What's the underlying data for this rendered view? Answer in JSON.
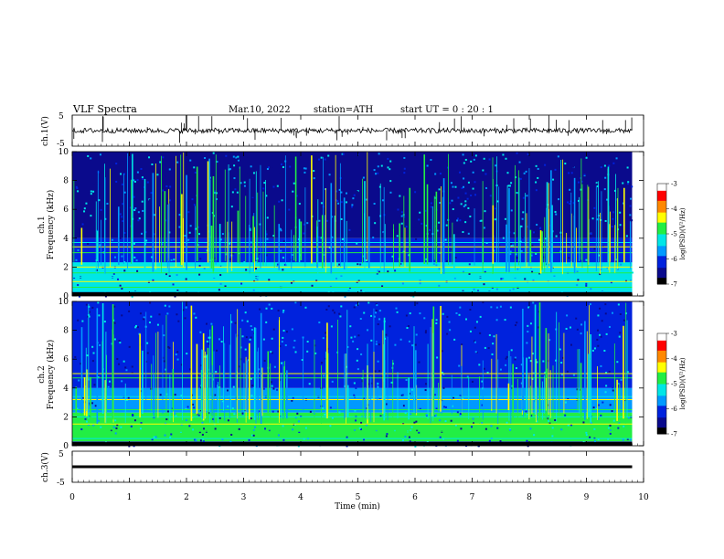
{
  "header": {
    "title": "VLF  Spectra",
    "date": "Mar.10, 2022",
    "station": "station=ATH",
    "start": "start  UT  =    0  : 20 : 1"
  },
  "colors": {
    "colormap": [
      "#000000",
      "#0a0a8c",
      "#0022dd",
      "#0099ff",
      "#00e6e6",
      "#22ee44",
      "#ffff00",
      "#ff8800",
      "#ff0000",
      "#ffffff"
    ],
    "trace": "#000000"
  },
  "chart_data": [
    {
      "type": "line",
      "name": "ch1-waveform",
      "ylabel": "ch.1(V)",
      "ylim": [
        -5,
        5
      ],
      "yticks": [
        "5",
        "-5"
      ],
      "baseline": 0,
      "amplitude": 0.8,
      "spikes_up_to": 5
    },
    {
      "type": "heatmap",
      "name": "ch1-spectrogram",
      "ylabel": "ch.1\nFrequency  (kHz)",
      "ylim": [
        0,
        10
      ],
      "yticks": [
        "0",
        "2",
        "4",
        "6",
        "8",
        "10"
      ],
      "colorbar": {
        "label": "log(PSD)(V²/Hz)",
        "range": [
          -7,
          -3
        ],
        "ticks": [
          "-3",
          "-4",
          "-5",
          "-6",
          "-7"
        ]
      },
      "bands_khz": [
        {
          "from": 0.0,
          "to": 0.3,
          "level": 1
        },
        {
          "from": 0.3,
          "to": 2.3,
          "level": 4
        },
        {
          "from": 2.3,
          "to": 4.0,
          "level": 2
        },
        {
          "from": 4.0,
          "to": 10.0,
          "level": 1
        }
      ],
      "lines_khz": [
        0.3,
        0.6,
        1.0,
        1.3,
        1.6,
        2.0,
        2.3,
        3.0,
        3.4,
        3.7
      ]
    },
    {
      "type": "heatmap",
      "name": "ch2-spectrogram",
      "ylabel": "ch.2\nFrequency  (kHz)",
      "ylim": [
        0,
        10
      ],
      "yticks": [
        "0",
        "2",
        "4",
        "6",
        "8",
        "10"
      ],
      "colorbar": {
        "label": "log(PSD)(V²/Hz)",
        "range": [
          -7,
          -3
        ],
        "ticks": [
          "-3",
          "-4",
          "-5",
          "-6",
          "-7"
        ]
      },
      "bands_khz": [
        {
          "from": 0.0,
          "to": 0.3,
          "level": 1
        },
        {
          "from": 0.3,
          "to": 2.3,
          "level": 5
        },
        {
          "from": 2.3,
          "to": 4.0,
          "level": 3
        },
        {
          "from": 4.0,
          "to": 10.0,
          "level": 2
        }
      ],
      "lines_khz": [
        0.5,
        1.0,
        1.5,
        2.0,
        2.5,
        3.2,
        3.4,
        4.7,
        5.0
      ]
    },
    {
      "type": "line",
      "name": "ch3-waveform",
      "ylabel": "ch.3(V)",
      "ylim": [
        -5,
        5
      ],
      "yticks": [
        "5",
        "-5"
      ],
      "baseline": 0,
      "amplitude": 0.05
    }
  ],
  "x_axis": {
    "label": "Time  (min)",
    "range": [
      0,
      10
    ],
    "ticks": [
      "0",
      "1",
      "2",
      "3",
      "4",
      "5",
      "6",
      "7",
      "8",
      "9",
      "10"
    ],
    "data_end": 9.8
  }
}
